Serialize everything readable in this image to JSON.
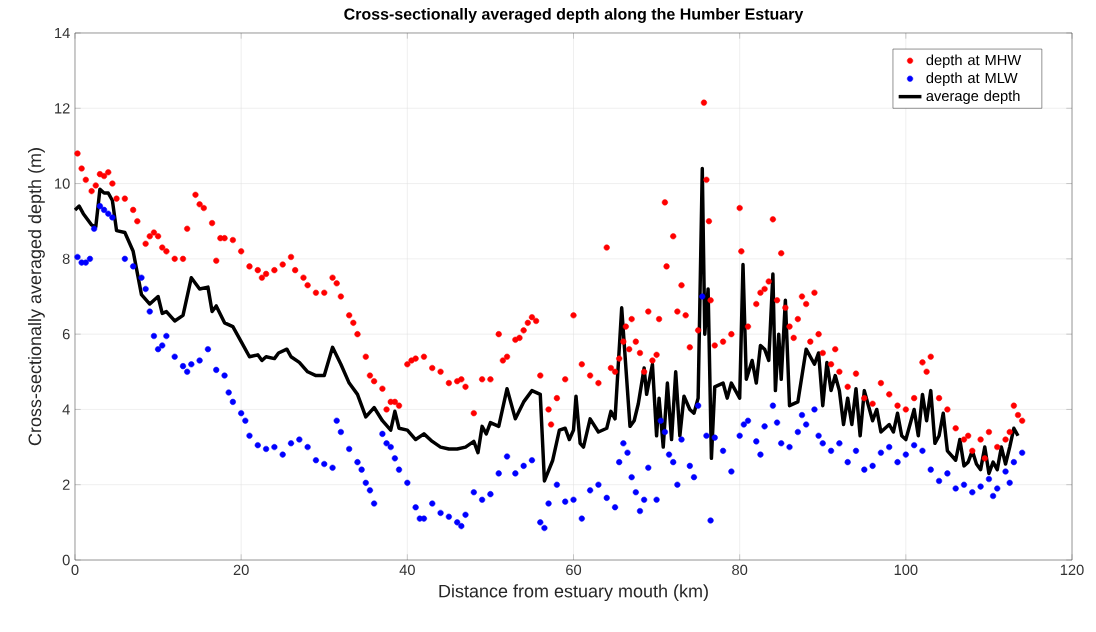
{
  "chart_data": {
    "type": "scatter",
    "title": "Cross-sectionally averaged depth along the Humber  Estuary",
    "xlabel": "Distance from estuary mouth (km)",
    "ylabel": "Cross-sectionally averaged depth (m)",
    "xlim": [
      0,
      120
    ],
    "ylim": [
      0,
      14
    ],
    "xticks": [
      0,
      20,
      40,
      60,
      80,
      100,
      120
    ],
    "yticks": [
      0,
      2,
      4,
      6,
      8,
      10,
      12,
      14
    ],
    "grid": true,
    "legend": "top right",
    "series": [
      {
        "name": "depth at MHW",
        "type": "scatter",
        "marker": "circle",
        "color": "#ff0000",
        "x": [
          0.3,
          0.8,
          1.3,
          2,
          2.5,
          3,
          3.5,
          4,
          4.5,
          5,
          6,
          7,
          7.5,
          8.5,
          9,
          9.5,
          10,
          10.5,
          11,
          12,
          13,
          13.5,
          14.5,
          15,
          15.5,
          16.5,
          17,
          17.5,
          18,
          19,
          20,
          21,
          22,
          22.5,
          23,
          24,
          25,
          26,
          26.5,
          27.5,
          28,
          29,
          30,
          31,
          31.5,
          32,
          33,
          33.5,
          34,
          35,
          35.5,
          36,
          37,
          37.5,
          38,
          38.5,
          39,
          40,
          40.5,
          41,
          42,
          43,
          44,
          45,
          46,
          46.5,
          47,
          48,
          49,
          50,
          51,
          51.5,
          52,
          53,
          53.5,
          54,
          54.5,
          55,
          55.5,
          56,
          57,
          57.3,
          58,
          59,
          60,
          61,
          62,
          63,
          64,
          64.5,
          65,
          65.5,
          66,
          66.3,
          66.7,
          67,
          67.5,
          68,
          68.5,
          69,
          69.5,
          70,
          70.3,
          71,
          71.2,
          72,
          72.5,
          73,
          73.5,
          74,
          75,
          75.7,
          76,
          76.3,
          76.5,
          77,
          78,
          79,
          80,
          80.2,
          81,
          82,
          82.5,
          83,
          83.5,
          84,
          84.5,
          85,
          85.5,
          86,
          86.5,
          87,
          87.5,
          88,
          88.5,
          89,
          89.5,
          90,
          91,
          91.5,
          92,
          93,
          94,
          95,
          96,
          97,
          98,
          99,
          100,
          101,
          102,
          102.5,
          103,
          104,
          105,
          106,
          107,
          107.5,
          108,
          109,
          109.5,
          110,
          111,
          112,
          112.5,
          113,
          113.5,
          114
        ],
        "values": [
          10.8,
          10.4,
          10.1,
          9.8,
          9.95,
          10.25,
          10.2,
          10.3,
          10.0,
          9.6,
          9.6,
          9.3,
          9.0,
          8.4,
          8.6,
          8.7,
          8.6,
          8.3,
          8.2,
          8.0,
          8.0,
          8.8,
          9.7,
          9.45,
          9.35,
          8.95,
          7.95,
          8.55,
          8.55,
          8.5,
          8.2,
          7.8,
          7.7,
          7.5,
          7.6,
          7.7,
          7.85,
          8.05,
          7.7,
          7.5,
          7.3,
          7.1,
          7.1,
          7.5,
          7.35,
          7.0,
          6.5,
          6.3,
          6.0,
          5.4,
          4.9,
          4.75,
          4.55,
          4.0,
          4.2,
          4.2,
          4.1,
          5.2,
          5.3,
          5.35,
          5.4,
          5.1,
          5.0,
          4.7,
          4.75,
          4.8,
          4.6,
          3.9,
          4.8,
          4.8,
          6.0,
          5.3,
          5.4,
          5.85,
          5.9,
          6.1,
          6.3,
          6.45,
          6.35,
          4.9,
          4.0,
          3.6,
          4.3,
          4.8,
          6.5,
          5.2,
          4.9,
          4.7,
          8.3,
          5.1,
          5.0,
          5.35,
          5.8,
          6.2,
          5.6,
          6.4,
          5.8,
          5.5,
          5.0,
          6.6,
          5.3,
          5.45,
          6.4,
          9.5,
          7.8,
          8.6,
          6.6,
          7.3,
          6.5,
          5.65,
          6.1,
          12.15,
          10.1,
          9.0,
          6.9,
          5.7,
          5.8,
          6.0,
          9.35,
          8.2,
          6.2,
          6.8,
          7.1,
          7.2,
          7.4,
          9.05,
          6.9,
          8.15,
          6.7,
          6.2,
          5.9,
          6.4,
          7.0,
          6.8,
          5.8,
          7.1,
          6.0,
          5.5,
          5.2,
          5.6,
          5.0,
          4.6,
          4.95,
          4.3,
          4.15,
          4.7,
          4.4,
          4.1,
          4.0,
          4.3,
          5.25,
          5.0,
          5.4,
          4.3,
          4.0,
          3.5,
          3.2,
          3.3,
          2.9,
          3.2,
          2.7,
          3.4,
          3.0,
          3.2,
          3.4,
          4.1,
          3.85,
          3.7
        ]
      },
      {
        "name": "depth at MLW",
        "type": "scatter",
        "marker": "circle",
        "color": "#0000ff",
        "x": [
          0.3,
          0.8,
          1.3,
          1.8,
          2.3,
          3,
          3.5,
          4,
          4.5,
          6,
          7,
          8,
          8.5,
          9,
          9.5,
          10,
          10.5,
          11,
          12,
          13,
          13.5,
          14,
          15,
          16,
          17,
          18,
          18.5,
          19,
          20,
          20.5,
          21,
          22,
          23,
          24,
          25,
          26,
          27,
          28,
          29,
          30,
          31,
          31.5,
          32,
          33,
          34,
          34.5,
          35,
          35.5,
          36,
          37,
          37.5,
          38,
          38.5,
          39,
          40,
          41,
          41.5,
          42,
          43,
          44,
          45,
          46,
          46.5,
          47,
          48,
          49,
          50,
          51,
          52,
          53,
          54,
          55,
          56,
          56.5,
          57,
          58,
          59,
          60,
          61,
          62,
          63,
          64,
          65,
          65.5,
          66,
          66.5,
          67,
          67.5,
          68,
          68.5,
          69,
          70,
          70.5,
          71,
          71.5,
          72,
          72.5,
          73,
          74,
          74.5,
          75,
          75.5,
          76,
          76.5,
          77,
          78,
          79,
          80,
          80.5,
          81,
          82,
          82.5,
          83,
          84,
          84.5,
          85,
          86,
          87,
          87.5,
          88,
          89,
          89.5,
          90,
          91,
          92,
          93,
          94,
          95,
          96,
          97,
          98,
          99,
          100,
          101,
          102,
          103,
          104,
          105,
          106,
          107,
          108,
          109,
          110,
          110.5,
          111,
          112,
          112.5,
          113,
          114
        ],
        "values": [
          8.05,
          7.9,
          7.9,
          8.0,
          8.8,
          9.4,
          9.3,
          9.2,
          9.1,
          8.0,
          7.8,
          7.5,
          7.2,
          6.6,
          5.95,
          5.6,
          5.7,
          5.95,
          5.4,
          5.15,
          5.0,
          5.2,
          5.3,
          5.6,
          5.05,
          4.9,
          4.45,
          4.2,
          3.9,
          3.7,
          3.3,
          3.05,
          2.95,
          3.0,
          2.8,
          3.1,
          3.2,
          3.0,
          2.65,
          2.55,
          2.45,
          3.7,
          3.4,
          2.95,
          2.6,
          2.4,
          2.05,
          1.85,
          1.5,
          3.35,
          3.1,
          3.0,
          2.7,
          2.4,
          2.05,
          1.4,
          1.1,
          1.1,
          1.5,
          1.25,
          1.15,
          1.0,
          0.9,
          1.2,
          1.8,
          1.6,
          1.75,
          2.3,
          2.75,
          2.3,
          2.5,
          2.65,
          1.0,
          0.85,
          1.5,
          2.0,
          1.55,
          1.6,
          1.1,
          1.85,
          2.0,
          1.65,
          1.4,
          2.6,
          3.1,
          2.85,
          2.2,
          1.8,
          1.3,
          1.6,
          2.45,
          1.6,
          3.7,
          3.4,
          2.8,
          2.6,
          2.0,
          3.2,
          2.5,
          2.2,
          4.1,
          7.0,
          3.3,
          1.05,
          3.25,
          2.9,
          2.35,
          3.3,
          3.6,
          3.7,
          3.15,
          2.8,
          3.55,
          4.1,
          3.65,
          3.1,
          3.0,
          3.4,
          3.85,
          3.6,
          4.0,
          3.3,
          3.1,
          2.9,
          3.1,
          2.6,
          2.9,
          2.4,
          2.5,
          2.85,
          3.0,
          2.6,
          2.8,
          3.05,
          2.9,
          2.4,
          2.1,
          2.3,
          1.9,
          2.0,
          1.8,
          1.95,
          2.15,
          1.7,
          1.9,
          2.35,
          2.05,
          2.6,
          2.85
        ]
      },
      {
        "name": "average depth",
        "type": "line",
        "marker": "none",
        "line_style": "solid",
        "color": "#000000",
        "x": [
          0,
          0.5,
          1,
          2,
          2.5,
          3,
          3.5,
          4,
          4.5,
          5,
          6,
          7,
          8,
          9,
          10,
          10.5,
          11,
          12,
          13,
          14,
          15,
          16,
          16.5,
          17,
          18,
          19,
          20,
          21,
          22,
          22.5,
          23,
          24,
          24.5,
          25.5,
          26,
          27,
          28,
          29,
          30,
          31,
          32,
          33,
          34,
          35,
          36,
          37,
          38,
          38.5,
          39,
          40,
          41,
          42,
          43,
          44,
          45,
          46,
          47,
          48,
          48.5,
          49,
          49.5,
          50,
          51,
          52,
          53,
          54,
          55,
          56,
          56.5,
          57.5,
          58.3,
          59,
          59.5,
          60,
          60.3,
          60.8,
          61.2,
          62,
          63,
          64,
          64.5,
          65,
          65.8,
          66.8,
          67.3,
          67.8,
          68.5,
          68.8,
          69.5,
          70,
          70.3,
          70.8,
          71.3,
          71.8,
          72.3,
          72.8,
          73.3,
          74,
          74.5,
          75,
          75.5,
          75.8,
          76.2,
          76.6,
          77,
          78,
          78.5,
          79,
          79.5,
          80,
          80.4,
          80.8,
          81.5,
          82,
          82.5,
          83,
          83.5,
          84,
          84.3,
          84.7,
          85,
          85.5,
          86,
          87,
          88,
          89,
          89.5,
          90,
          90.5,
          91,
          91.5,
          92,
          92.5,
          93,
          93.5,
          94,
          94.5,
          95,
          96,
          96.5,
          97,
          98,
          98.5,
          99,
          99.5,
          100,
          101,
          101.5,
          102,
          102.5,
          103,
          103.5,
          104,
          104.5,
          105,
          106,
          106.5,
          107,
          107.5,
          108,
          108.5,
          109,
          109.5,
          110,
          110.5,
          111,
          111.5,
          112,
          112.5,
          113,
          113.5
        ],
        "values": [
          9.3,
          9.4,
          9.2,
          8.9,
          8.85,
          9.85,
          9.75,
          9.75,
          9.55,
          8.75,
          8.7,
          8.2,
          7.05,
          6.8,
          7.0,
          6.55,
          6.6,
          6.35,
          6.5,
          7.5,
          7.2,
          7.25,
          6.6,
          6.75,
          6.3,
          6.2,
          5.8,
          5.4,
          5.45,
          5.3,
          5.4,
          5.35,
          5.5,
          5.6,
          5.4,
          5.25,
          5.0,
          4.9,
          4.9,
          5.65,
          5.2,
          4.7,
          4.4,
          3.8,
          4.05,
          3.7,
          3.45,
          3.95,
          3.5,
          3.45,
          3.2,
          3.35,
          3.15,
          3.0,
          2.95,
          2.95,
          3.0,
          3.15,
          2.85,
          3.55,
          3.35,
          3.65,
          3.55,
          4.55,
          3.75,
          4.2,
          4.5,
          4.4,
          2.1,
          2.65,
          3.45,
          3.5,
          3.2,
          3.45,
          4.35,
          3.1,
          3.0,
          3.75,
          3.4,
          3.5,
          3.95,
          3.75,
          6.7,
          3.55,
          3.7,
          4.15,
          5.1,
          4.4,
          5.2,
          3.3,
          4.3,
          3.0,
          4.7,
          3.2,
          5.0,
          3.3,
          4.35,
          4.0,
          3.9,
          4.3,
          10.4,
          6.0,
          7.2,
          2.7,
          4.6,
          4.7,
          4.3,
          4.7,
          4.5,
          4.3,
          7.85,
          4.8,
          5.3,
          4.7,
          5.7,
          5.6,
          5.3,
          7.6,
          4.5,
          6.0,
          4.8,
          6.9,
          4.1,
          4.2,
          5.6,
          5.2,
          5.5,
          4.1,
          5.25,
          4.5,
          4.9,
          4.5,
          3.6,
          4.3,
          3.6,
          4.55,
          3.3,
          4.5,
          3.7,
          4.0,
          3.4,
          3.6,
          3.4,
          3.9,
          3.3,
          3.2,
          4.0,
          3.3,
          4.4,
          3.7,
          4.5,
          3.1,
          3.3,
          3.9,
          2.9,
          2.65,
          3.2,
          2.5,
          2.6,
          2.9,
          2.55,
          2.4,
          3.0,
          2.3,
          2.6,
          2.4,
          3.0,
          2.55,
          3.0,
          3.5,
          3.3
        ]
      }
    ]
  }
}
